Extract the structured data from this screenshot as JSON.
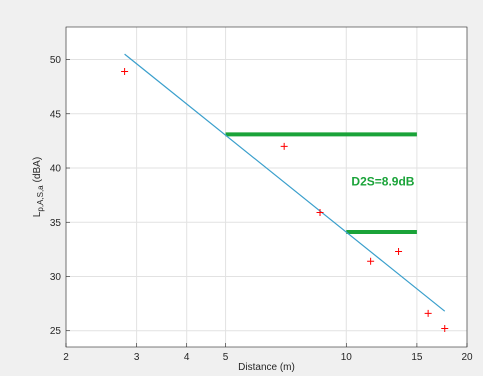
{
  "chart_data": {
    "type": "scatter",
    "xscale": "log",
    "xlim": [
      2,
      20
    ],
    "ylim": [
      23.5,
      53
    ],
    "xticks": [
      2,
      3,
      4,
      5,
      10,
      15,
      20
    ],
    "xtick_labels": [
      "2",
      "3",
      "4",
      "5",
      "10",
      "15",
      "20"
    ],
    "yticks": [
      25,
      30,
      35,
      40,
      45,
      50
    ],
    "ytick_labels": [
      "25",
      "30",
      "35",
      "40",
      "45",
      "50"
    ],
    "xlabel": "Distance (m)",
    "ylabel_main": "L",
    "ylabel_sub": "p,A,S,a",
    "ylabel_unit": "(dBA)",
    "grid": true,
    "series": [
      {
        "marker": "+",
        "color": "#ff0000",
        "points": [
          [
            2.8,
            48.9
          ],
          [
            7,
            42
          ],
          [
            8.6,
            35.9
          ],
          [
            11.5,
            31.4
          ],
          [
            13.5,
            32.3
          ],
          [
            16,
            26.6
          ],
          [
            17.6,
            25.2
          ]
        ]
      }
    ],
    "fit_line": {
      "color": "#3a9fcc",
      "points": [
        [
          2.8,
          50.5
        ],
        [
          17.6,
          26.8
        ]
      ]
    },
    "levels": [
      {
        "color": "#1aa339",
        "x": [
          5,
          15
        ],
        "y": 43.1
      },
      {
        "color": "#1aa339",
        "x": [
          10,
          15
        ],
        "y": 34.1
      }
    ],
    "annotation": {
      "text": "D2S=8.9dB",
      "color": "#1aa339",
      "x": 10.3,
      "y": 38.4
    }
  }
}
